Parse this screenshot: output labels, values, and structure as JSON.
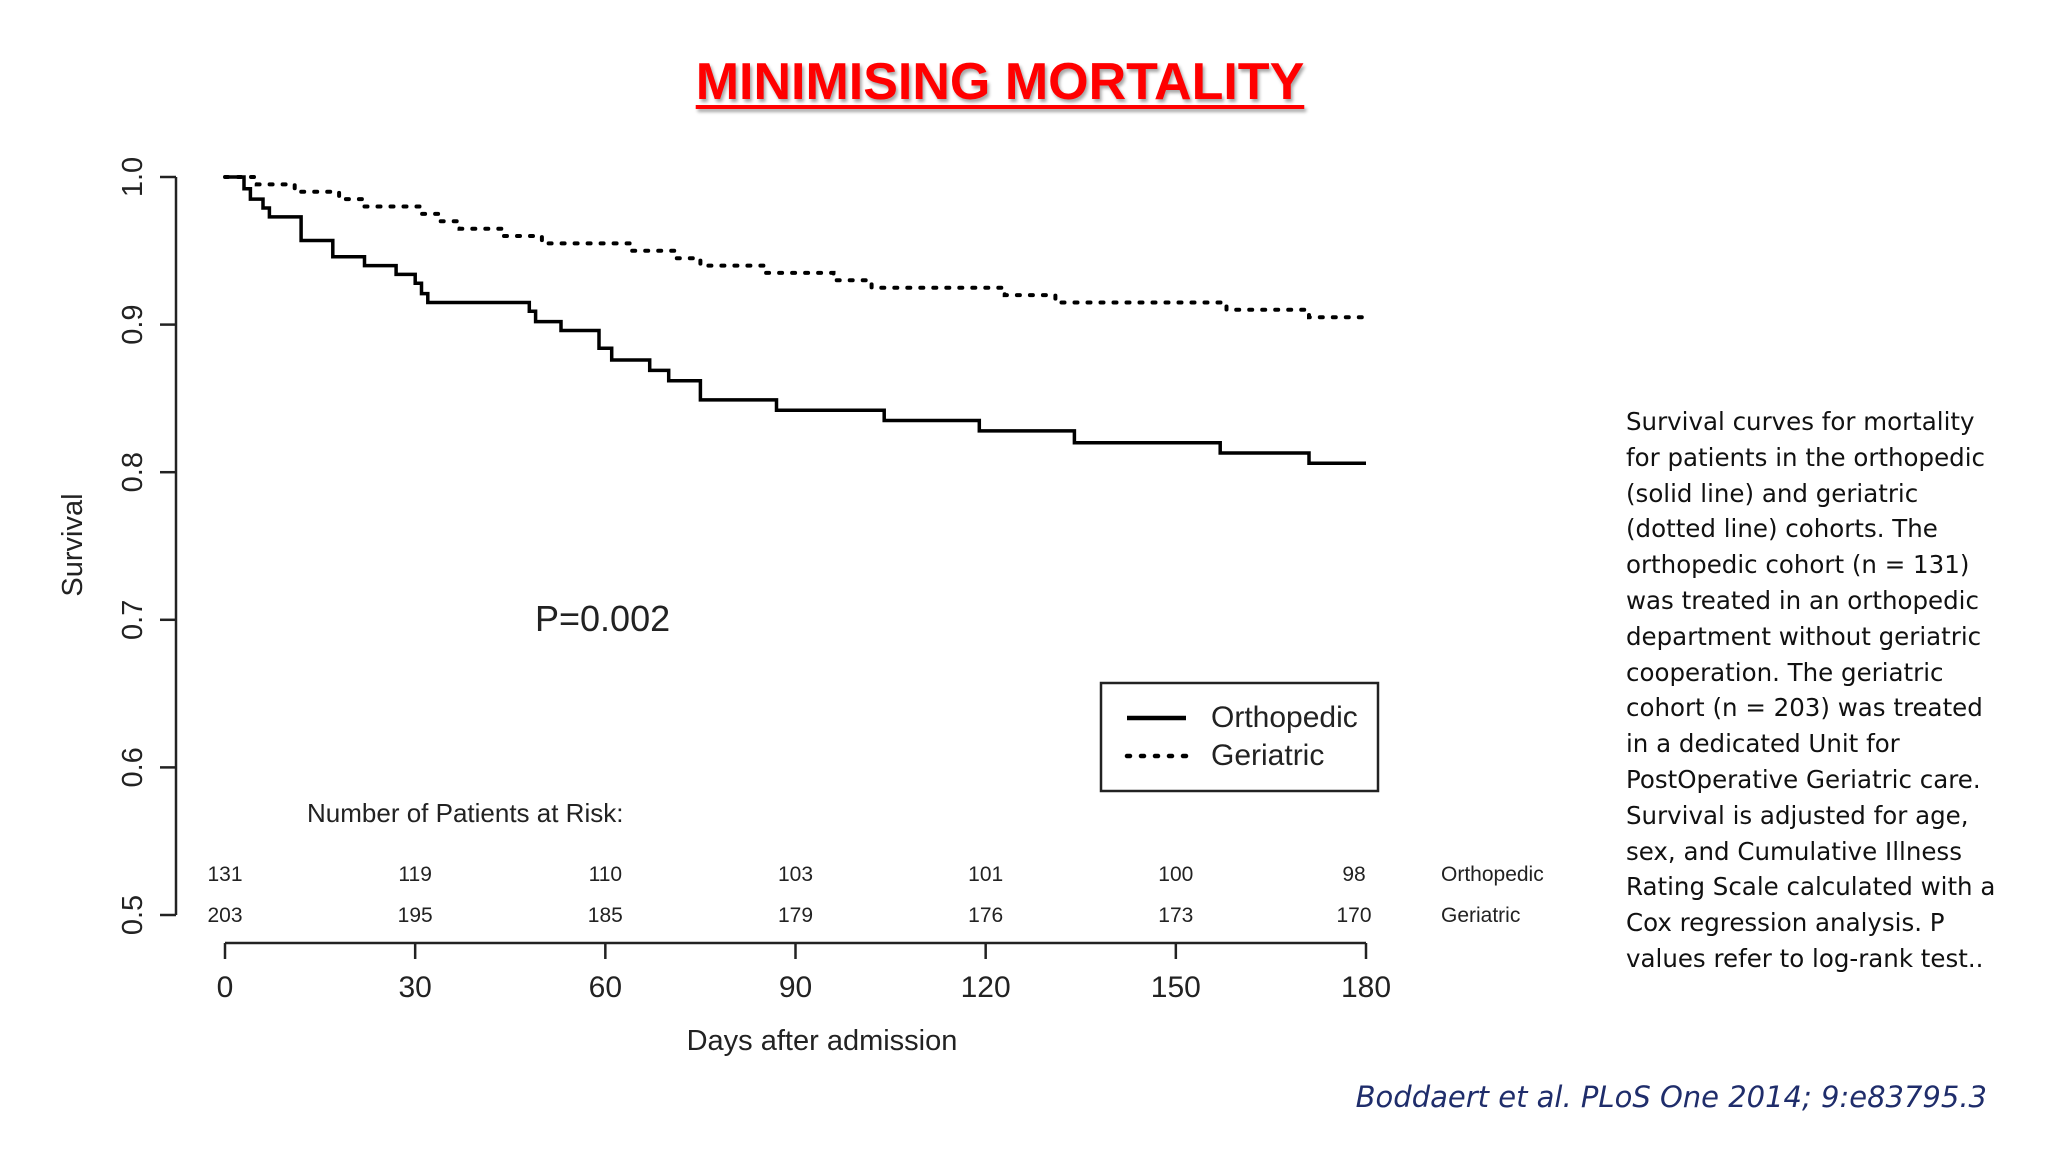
{
  "slide": {
    "title": "MINIMISING MORTALITY",
    "caption": "Survival curves for mortality for patients in the orthopedic (solid line) and geriatric (dotted line) cohorts. The orthopedic cohort (n = 131) was treated in an orthopedic department without geriatric cooperation. The geriatric cohort (n = 203) was treated in a dedicated Unit for PostOperative Geriatric care. Survival is adjusted for age, sex, and Cumulative Illness Rating Scale calculated with a Cox regression analysis. P values refer to log-rank test..",
    "citation": "Boddaert et al. PLoS One 2014; 9:e83795.3",
    "colors": {
      "title": "#ff0000",
      "citation": "#1f2d6b",
      "lines": "#000000"
    }
  },
  "chart_data": {
    "type": "line",
    "xlabel": "Days after admission",
    "ylabel": "Survival",
    "xlim": [
      0,
      180
    ],
    "ylim": [
      0.5,
      1.0
    ],
    "xticks": [
      "0",
      "30",
      "60",
      "90",
      "120",
      "150",
      "180"
    ],
    "yticks": [
      "0.5",
      "0.6",
      "0.7",
      "0.8",
      "0.9",
      "1.0"
    ],
    "legend_position": "bottom-right",
    "annotation": "P=0.002",
    "series": [
      {
        "name": "Orthopedic",
        "style": "solid",
        "points": [
          [
            0,
            1.0
          ],
          [
            3,
            1.0
          ],
          [
            3,
            0.992
          ],
          [
            4,
            0.992
          ],
          [
            4,
            0.985
          ],
          [
            6,
            0.985
          ],
          [
            6,
            0.979
          ],
          [
            7,
            0.979
          ],
          [
            7,
            0.973
          ],
          [
            12,
            0.973
          ],
          [
            12,
            0.957
          ],
          [
            17,
            0.957
          ],
          [
            17,
            0.946
          ],
          [
            22,
            0.946
          ],
          [
            22,
            0.94
          ],
          [
            27,
            0.94
          ],
          [
            27,
            0.934
          ],
          [
            30,
            0.934
          ],
          [
            30,
            0.928
          ],
          [
            31,
            0.928
          ],
          [
            31,
            0.921
          ],
          [
            32,
            0.921
          ],
          [
            32,
            0.915
          ],
          [
            48,
            0.915
          ],
          [
            48,
            0.909
          ],
          [
            49,
            0.909
          ],
          [
            49,
            0.902
          ],
          [
            53,
            0.902
          ],
          [
            53,
            0.896
          ],
          [
            59,
            0.896
          ],
          [
            59,
            0.884
          ],
          [
            61,
            0.884
          ],
          [
            61,
            0.876
          ],
          [
            67,
            0.876
          ],
          [
            67,
            0.869
          ],
          [
            70,
            0.869
          ],
          [
            70,
            0.862
          ],
          [
            75,
            0.862
          ],
          [
            75,
            0.849
          ],
          [
            87,
            0.849
          ],
          [
            87,
            0.842
          ],
          [
            104,
            0.842
          ],
          [
            104,
            0.835
          ],
          [
            119,
            0.835
          ],
          [
            119,
            0.828
          ],
          [
            134,
            0.828
          ],
          [
            134,
            0.82
          ],
          [
            157,
            0.82
          ],
          [
            157,
            0.813
          ],
          [
            171,
            0.813
          ],
          [
            171,
            0.806
          ],
          [
            180,
            0.806
          ]
        ]
      },
      {
        "name": "Geriatric",
        "style": "dotted",
        "points": [
          [
            0,
            1.0
          ],
          [
            5,
            1.0
          ],
          [
            5,
            0.995
          ],
          [
            11,
            0.995
          ],
          [
            11,
            0.99
          ],
          [
            18,
            0.99
          ],
          [
            18,
            0.985
          ],
          [
            22,
            0.985
          ],
          [
            22,
            0.98
          ],
          [
            31,
            0.98
          ],
          [
            31,
            0.975
          ],
          [
            34,
            0.975
          ],
          [
            34,
            0.97
          ],
          [
            37,
            0.97
          ],
          [
            37,
            0.965
          ],
          [
            44,
            0.965
          ],
          [
            44,
            0.96
          ],
          [
            50,
            0.96
          ],
          [
            50,
            0.955
          ],
          [
            64,
            0.955
          ],
          [
            64,
            0.95
          ],
          [
            71,
            0.95
          ],
          [
            71,
            0.945
          ],
          [
            75,
            0.945
          ],
          [
            75,
            0.94
          ],
          [
            85,
            0.94
          ],
          [
            85,
            0.935
          ],
          [
            96,
            0.935
          ],
          [
            96,
            0.93
          ],
          [
            102,
            0.93
          ],
          [
            102,
            0.925
          ],
          [
            123,
            0.925
          ],
          [
            123,
            0.92
          ],
          [
            131,
            0.92
          ],
          [
            131,
            0.915
          ],
          [
            158,
            0.915
          ],
          [
            158,
            0.91
          ],
          [
            171,
            0.91
          ],
          [
            171,
            0.905
          ],
          [
            180,
            0.905
          ]
        ]
      }
    ],
    "at_risk": {
      "title": "Number of Patients at Risk:",
      "rows": [
        {
          "label": "Orthopedic",
          "values": [
            "131",
            "119",
            "110",
            "103",
            "101",
            "100",
            "98"
          ]
        },
        {
          "label": "Geriatric",
          "values": [
            "203",
            "195",
            "185",
            "179",
            "176",
            "173",
            "170"
          ]
        }
      ]
    }
  }
}
